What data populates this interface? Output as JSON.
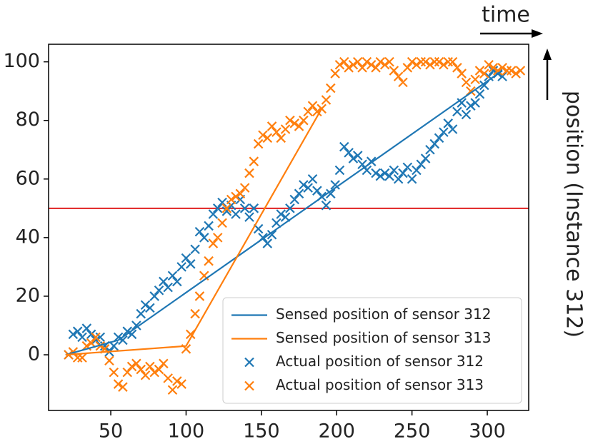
{
  "chart_data": {
    "type": "line",
    "annotations": [
      "time",
      "position (Instance 312)"
    ],
    "xlim": [
      8.7,
      327.5
    ],
    "ylim": [
      -19,
      106
    ],
    "xticks": [
      50,
      100,
      150,
      200,
      250,
      300
    ],
    "yticks": [
      0,
      20,
      40,
      60,
      80,
      100
    ],
    "hline": {
      "value": 50,
      "color": "#e02020"
    },
    "legend": "lower right",
    "series": [
      {
        "name": "Sensed position of sensor 312",
        "kind": "line",
        "color": "#1f77b4",
        "x": [
          20,
          55,
          310
        ],
        "values": [
          0,
          5,
          97
        ]
      },
      {
        "name": "Sensed position of sensor 313",
        "kind": "line",
        "color": "#ff7f0e",
        "x": [
          20,
          100,
          190
        ],
        "values": [
          0,
          3,
          84
        ]
      },
      {
        "name": "Actual position of sensor 312",
        "kind": "scatter",
        "color": "#1f77b4",
        "x": [
          22,
          25,
          28,
          31,
          34,
          37,
          40,
          43,
          46,
          49,
          52,
          55,
          58,
          61,
          64,
          67,
          70,
          73,
          76,
          79,
          82,
          85,
          88,
          91,
          94,
          97,
          100,
          103,
          106,
          109,
          112,
          115,
          118,
          121,
          124,
          127,
          130,
          133,
          136,
          139,
          142,
          145,
          148,
          151,
          154,
          157,
          160,
          163,
          166,
          169,
          172,
          175,
          178,
          181,
          184,
          187,
          190,
          193,
          196,
          199,
          202,
          205,
          208,
          211,
          214,
          217,
          220,
          223,
          226,
          229,
          232,
          235,
          238,
          241,
          244,
          247,
          250,
          253,
          256,
          259,
          262,
          265,
          268,
          271,
          274,
          277,
          280,
          283,
          286,
          289,
          292,
          295,
          298,
          301,
          304,
          307,
          310
        ],
        "values": [
          0,
          7,
          8,
          6,
          9,
          7,
          5,
          6,
          3,
          1,
          3,
          6,
          5,
          8,
          7,
          10,
          14,
          17,
          16,
          20,
          22,
          25,
          23,
          27,
          25,
          30,
          33,
          31,
          36,
          42,
          40,
          44,
          48,
          50,
          52,
          49,
          51,
          48,
          53,
          50,
          47,
          50,
          43,
          40,
          38,
          41,
          45,
          48,
          47,
          50,
          53,
          55,
          58,
          57,
          60,
          56,
          54,
          51,
          55,
          58,
          63,
          71,
          69,
          67,
          68,
          65,
          63,
          66,
          62,
          61,
          62,
          61,
          63,
          60,
          62,
          64,
          60,
          63,
          65,
          67,
          70,
          72,
          74,
          76,
          79,
          77,
          83,
          86,
          82,
          85,
          86,
          89,
          92,
          95,
          97,
          96,
          95
        ]
      },
      {
        "name": "Actual position of sensor 313",
        "kind": "scatter",
        "color": "#ff7f0e",
        "x": [
          22,
          25,
          28,
          31,
          34,
          37,
          40,
          43,
          46,
          49,
          52,
          55,
          58,
          61,
          64,
          67,
          70,
          73,
          76,
          79,
          82,
          85,
          88,
          91,
          94,
          97,
          100,
          103,
          106,
          109,
          112,
          115,
          118,
          121,
          124,
          127,
          130,
          133,
          136,
          139,
          142,
          145,
          148,
          151,
          154,
          157,
          160,
          163,
          166,
          169,
          172,
          175,
          178,
          181,
          184,
          187,
          190,
          193,
          196,
          199,
          202,
          205,
          208,
          211,
          214,
          217,
          220,
          223,
          226,
          229,
          232,
          235,
          238,
          241,
          244,
          247,
          250,
          253,
          256,
          259,
          262,
          265,
          268,
          271,
          274,
          277,
          280,
          283,
          286,
          289,
          292,
          295,
          298,
          301,
          304,
          307,
          310,
          313,
          316,
          319,
          322
        ],
        "values": [
          0,
          1,
          -1,
          -1,
          3,
          4,
          6,
          3,
          2,
          -2,
          -6,
          -10,
          -11,
          -6,
          -4,
          -3,
          -5,
          -7,
          -4,
          -6,
          -5,
          -3,
          -8,
          -12,
          -9,
          -10,
          2,
          7,
          14,
          20,
          27,
          32,
          38,
          40,
          45,
          50,
          53,
          54,
          55,
          57,
          62,
          66,
          72,
          75,
          74,
          78,
          76,
          74,
          77,
          80,
          79,
          78,
          80,
          83,
          85,
          83,
          84,
          87,
          91,
          96,
          99,
          100,
          98,
          99,
          100,
          98,
          100,
          99,
          98,
          100,
          99,
          100,
          97,
          95,
          93,
          98,
          100,
          99,
          100,
          100,
          99,
          100,
          100,
          99,
          100,
          100,
          98,
          96,
          93,
          90,
          94,
          97,
          96,
          99,
          98,
          97,
          98,
          97,
          97,
          96,
          97
        ]
      }
    ]
  }
}
